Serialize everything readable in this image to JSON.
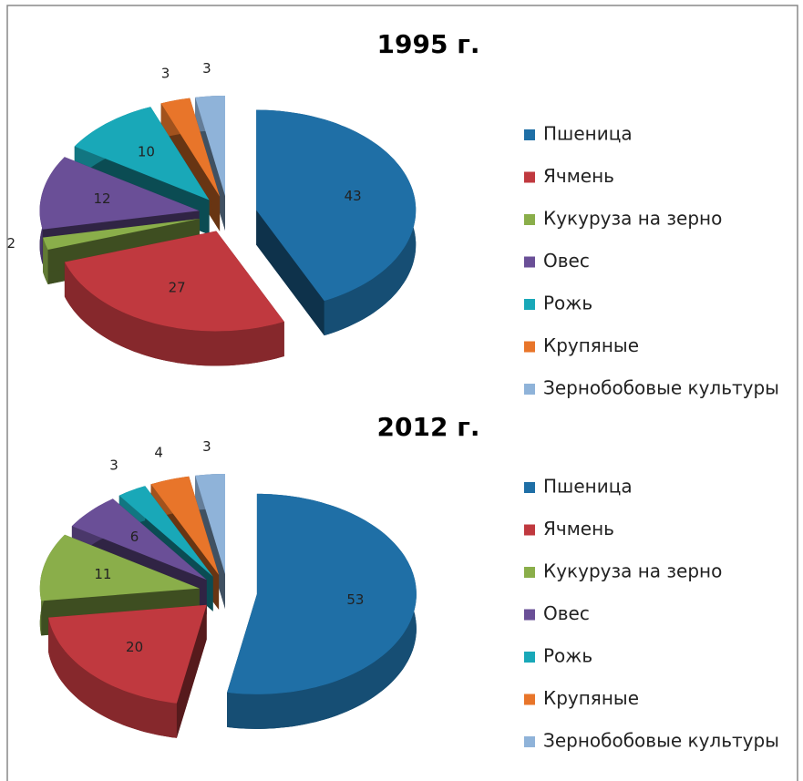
{
  "chart_data": [
    {
      "type": "pie3d",
      "title": "1995 г.",
      "categories": [
        "Пшеница",
        "Ячмень",
        "Кукуруза на зерно",
        "Овес",
        "Рожь",
        "Крупяные",
        "Зернобобовые культуры"
      ],
      "values": [
        43,
        27,
        2,
        12,
        10,
        3,
        3
      ],
      "colors": [
        "#1f6fa6",
        "#c0393f",
        "#8aae4a",
        "#6a4f97",
        "#19a8b8",
        "#e8752a",
        "#8fb3d9"
      ],
      "legend": "right"
    },
    {
      "type": "pie3d",
      "title": "2012 г.",
      "categories": [
        "Пшеница",
        "Ячмень",
        "Кукуруза на зерно",
        "Овес",
        "Рожь",
        "Крупяные",
        "Зернобобовые культуры"
      ],
      "values": [
        53,
        20,
        11,
        6,
        3,
        4,
        3
      ],
      "colors": [
        "#1f6fa6",
        "#c0393f",
        "#8aae4a",
        "#6a4f97",
        "#19a8b8",
        "#e8752a",
        "#8fb3d9"
      ],
      "legend": "right"
    }
  ]
}
